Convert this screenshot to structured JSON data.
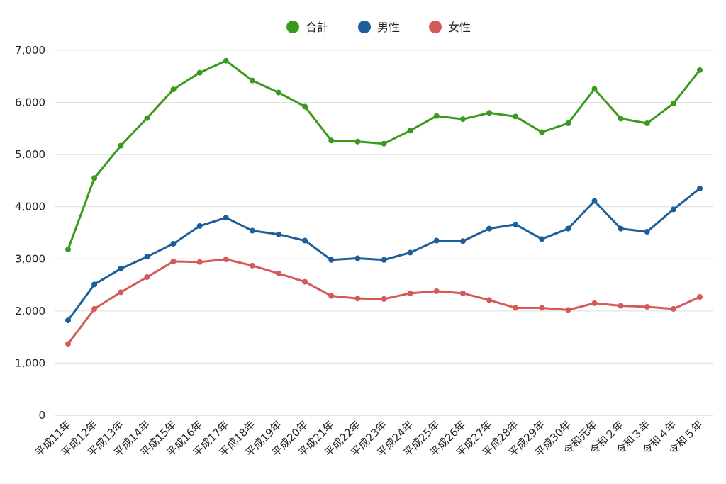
{
  "chart_data": {
    "type": "line",
    "title": "",
    "xlabel": "",
    "ylabel": "",
    "ylim": [
      0,
      7000
    ],
    "yticks": [
      0,
      1000,
      2000,
      3000,
      4000,
      5000,
      6000,
      7000
    ],
    "ytick_labels": [
      "0",
      "1,000",
      "2,000",
      "3,000",
      "4,000",
      "5,000",
      "6,000",
      "7,000"
    ],
    "grid": "horizontal",
    "legend_position": "top-center",
    "categories": [
      "平成11年",
      "平成12年",
      "平成13年",
      "平成14年",
      "平成15年",
      "平成16年",
      "平成17年",
      "平成18年",
      "平成19年",
      "平成20年",
      "平成21年",
      "平成22年",
      "平成23年",
      "平成24年",
      "平成25年",
      "平成26年",
      "平成27年",
      "平成28年",
      "平成29年",
      "平成30年",
      "令和元年",
      "令和２年",
      "令和３年",
      "令和４年",
      "令和５年"
    ],
    "series": [
      {
        "name": "合計",
        "color": "#3a9a1c",
        "values": [
          3180,
          4550,
          5170,
          5700,
          6250,
          6570,
          6800,
          6420,
          6190,
          5920,
          5270,
          5250,
          5210,
          5460,
          5740,
          5680,
          5800,
          5730,
          5430,
          5600,
          6260,
          5690,
          5600,
          5980,
          6620
        ]
      },
      {
        "name": "男性",
        "color": "#1b5e99",
        "values": [
          1820,
          2510,
          2810,
          3040,
          3290,
          3630,
          3790,
          3540,
          3470,
          3350,
          2980,
          3010,
          2980,
          3120,
          3350,
          3340,
          3580,
          3660,
          3380,
          3580,
          4110,
          3580,
          3520,
          3950,
          4350
        ]
      },
      {
        "name": "女性",
        "color": "#d45a5a",
        "values": [
          1370,
          2040,
          2360,
          2650,
          2950,
          2940,
          2990,
          2870,
          2720,
          2560,
          2290,
          2240,
          2230,
          2340,
          2380,
          2340,
          2210,
          2060,
          2060,
          2020,
          2150,
          2100,
          2080,
          2040,
          2270
        ]
      }
    ]
  }
}
